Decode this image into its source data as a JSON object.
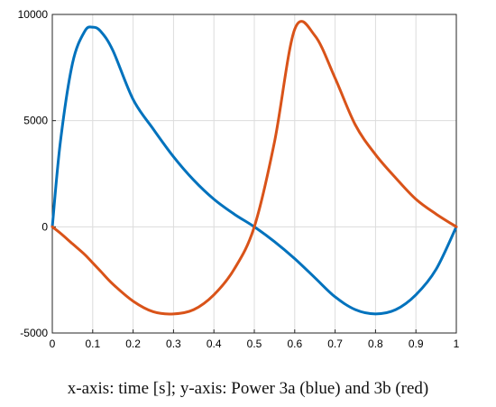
{
  "caption": "x-axis: time [s]; y-axis: Power 3a (blue) and 3b (red)",
  "chart_data": {
    "type": "line",
    "title": "",
    "xlabel": "",
    "ylabel": "",
    "xlim": [
      0,
      1
    ],
    "ylim": [
      -5000,
      10000
    ],
    "x_ticks": [
      "0",
      "0.1",
      "0.2",
      "0.3",
      "0.4",
      "0.5",
      "0.6",
      "0.7",
      "0.8",
      "0.9",
      "1"
    ],
    "y_ticks": [
      "-5000",
      "0",
      "5000",
      "10000"
    ],
    "grid": true,
    "colors": {
      "blue": "#0072BD",
      "red": "#D95319"
    },
    "x": [
      0,
      0.02,
      0.05,
      0.08,
      0.1,
      0.12,
      0.15,
      0.2,
      0.25,
      0.3,
      0.35,
      0.4,
      0.45,
      0.5,
      0.55,
      0.6,
      0.65,
      0.7,
      0.75,
      0.8,
      0.85,
      0.9,
      0.95,
      1
    ],
    "series": [
      {
        "color": "#0072BD",
        "values": [
          0,
          4000,
          7700,
          9200,
          9400,
          9200,
          8300,
          6000,
          4600,
          3300,
          2200,
          1300,
          600,
          0,
          -700,
          -1500,
          -2400,
          -3300,
          -3900,
          -4100,
          -3900,
          -3200,
          -2000,
          0
        ]
      },
      {
        "color": "#D95319",
        "values": [
          0,
          -300,
          -800,
          -1300,
          -1700,
          -2100,
          -2700,
          -3500,
          -4000,
          -4100,
          -3900,
          -3200,
          -2000,
          0,
          4000,
          9300,
          9000,
          7000,
          4800,
          3400,
          2300,
          1300,
          600,
          0
        ]
      }
    ]
  }
}
